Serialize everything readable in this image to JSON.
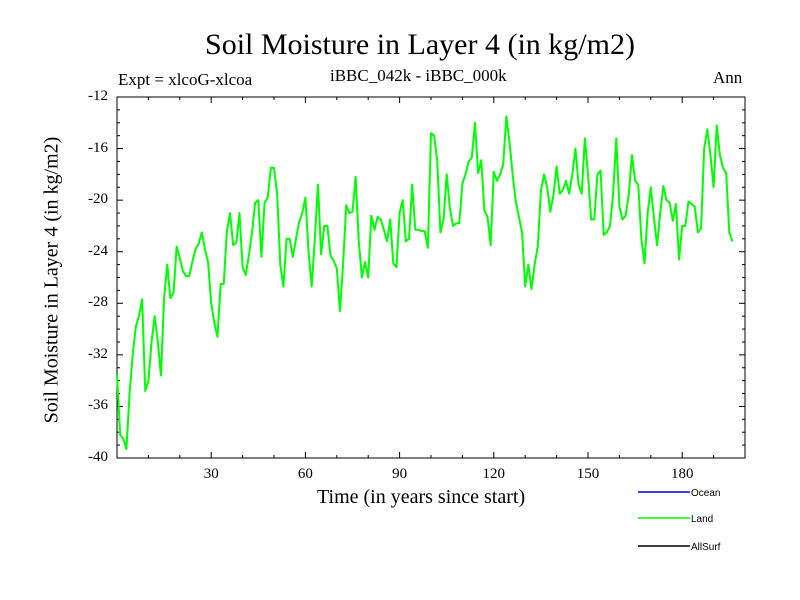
{
  "chart_data": {
    "type": "line",
    "title": "Soil Moisture in Layer 4 (in kg/m2)",
    "expt_label": "Expt = xlcoG-xlcoa",
    "subtitle": "iBBC_042k - iBBC_000k",
    "period": "Ann",
    "xlabel": "Time (in years since start)",
    "ylabel": "Soil Moisture in Layer 4 (in kg/m2)",
    "xlim": [
      0,
      200
    ],
    "ylim": [
      -40,
      -12
    ],
    "yticks": [
      -12,
      -16,
      -20,
      -24,
      -28,
      -32,
      -36,
      -40
    ],
    "xticks": [
      30,
      60,
      90,
      120,
      150,
      180
    ],
    "series": [
      {
        "name": "Ocean",
        "color": "#0000cc",
        "values": []
      },
      {
        "name": "Land",
        "color": "#00ff00",
        "values": [
          -33.5,
          -38.2,
          -38.5,
          -39.3,
          -35.0,
          -32.0,
          -29.8,
          -29.0,
          -27.7,
          -34.8,
          -34.0,
          -31.0,
          -29.0,
          -31.0,
          -33.6,
          -27.6,
          -25.0,
          -27.6,
          -27.2,
          -23.6,
          -24.5,
          -25.5,
          -25.9,
          -25.9,
          -24.8,
          -23.8,
          -23.4,
          -22.5,
          -23.8,
          -24.8,
          -28.0,
          -29.5,
          -30.6,
          -26.5,
          -26.5,
          -22.4,
          -21.0,
          -23.5,
          -23.3,
          -21.0,
          -25.2,
          -25.8,
          -24.3,
          -22.5,
          -20.2,
          -20.0,
          -24.4,
          -20.2,
          -19.8,
          -17.5,
          -17.5,
          -19.5,
          -25.0,
          -26.7,
          -23.0,
          -23.0,
          -24.4,
          -23.0,
          -21.7,
          -21.0,
          -19.8,
          -24.0,
          -26.7,
          -23.0,
          -18.8,
          -24.2,
          -22.0,
          -22.0,
          -24.3,
          -24.7,
          -25.3,
          -28.6,
          -25.0,
          -20.4,
          -21.0,
          -20.9,
          -18.2,
          -23.2,
          -26.0,
          -24.8,
          -26.0,
          -21.2,
          -22.3,
          -21.3,
          -21.5,
          -22.3,
          -23.2,
          -21.5,
          -24.9,
          -25.2,
          -21.0,
          -20.0,
          -23.2,
          -23.0,
          -18.8,
          -22.3,
          -22.3,
          -22.4,
          -22.4,
          -23.7,
          -14.8,
          -15.0,
          -17.0,
          -22.5,
          -21.5,
          -18.0,
          -20.6,
          -22.0,
          -21.8,
          -21.8,
          -18.7,
          -18.0,
          -17.0,
          -16.7,
          -14.0,
          -17.9,
          -16.9,
          -20.8,
          -21.3,
          -23.5,
          -17.8,
          -18.5,
          -18.0,
          -17.2,
          -13.5,
          -15.5,
          -18.0,
          -20.1,
          -21.3,
          -22.5,
          -26.7,
          -25.0,
          -26.9,
          -25.0,
          -23.6,
          -19.3,
          -18.0,
          -19.0,
          -20.9,
          -19.6,
          -17.4,
          -19.5,
          -19.2,
          -18.5,
          -19.5,
          -18.0,
          -16.0,
          -18.8,
          -19.5,
          -15.2,
          -18.0,
          -21.5,
          -21.5,
          -18.0,
          -17.7,
          -22.7,
          -22.5,
          -22.0,
          -19.5,
          -15.2,
          -20.5,
          -21.5,
          -21.2,
          -19.5,
          -16.5,
          -18.5,
          -18.8,
          -23.0,
          -24.9,
          -21.0,
          -19.0,
          -21.4,
          -23.5,
          -21.0,
          -18.9,
          -20.0,
          -20.2,
          -21.6,
          -20.3,
          -24.6,
          -22.0,
          -22.0,
          -20.1,
          -20.3,
          -20.5,
          -22.5,
          -22.2,
          -16.0,
          -14.5,
          -16.5,
          -19.0,
          -14.2,
          -16.5,
          -17.5,
          -17.9,
          -22.5,
          -23.2
        ]
      },
      {
        "name": "AllSurf",
        "color": "#000000",
        "values": []
      }
    ]
  }
}
